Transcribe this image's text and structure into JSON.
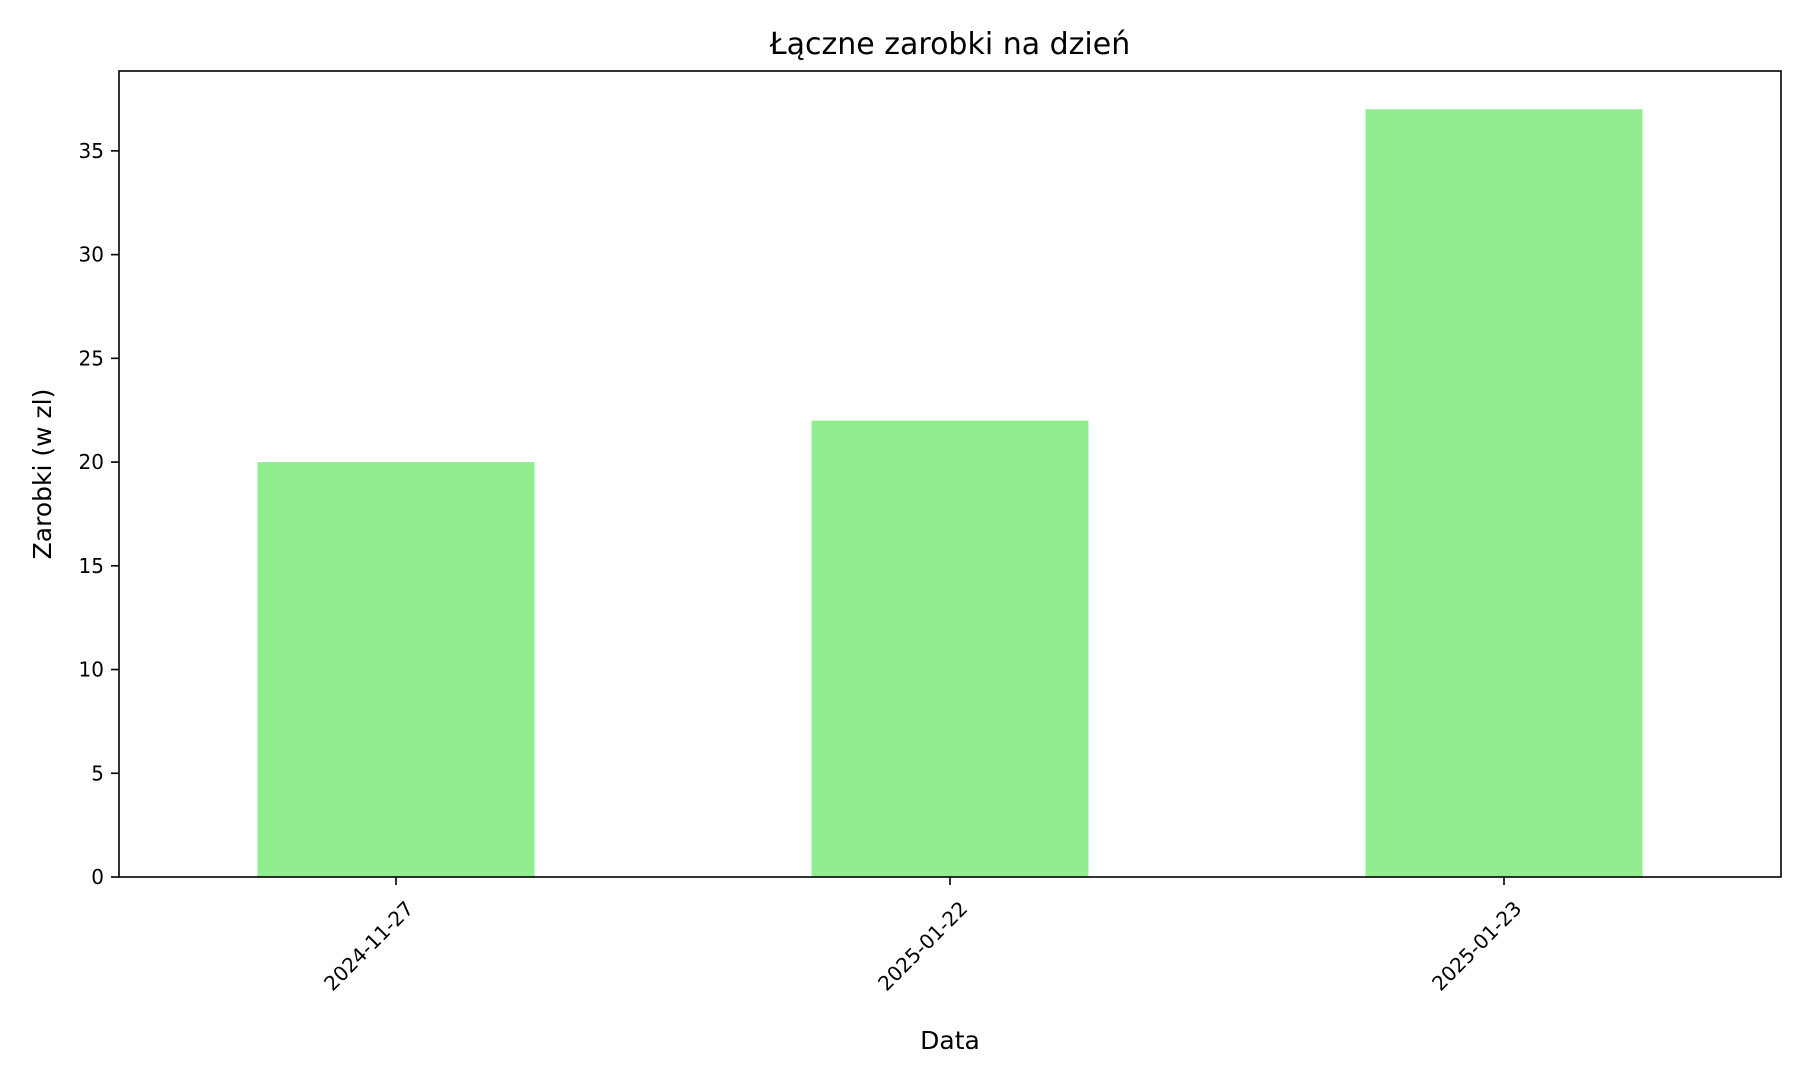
{
  "chart_data": {
    "type": "bar",
    "title": "Łączne zarobki na dzień",
    "xlabel": "Data",
    "ylabel": "Zarobki (w zl)",
    "categories": [
      "2024-11-27",
      "2025-01-22",
      "2025-01-23"
    ],
    "values": [
      20,
      22,
      37
    ],
    "ylim": [
      0,
      38.85
    ],
    "yticks": [
      "0",
      "5",
      "10",
      "15",
      "20",
      "25",
      "30",
      "35"
    ],
    "grid": false,
    "legend": "none",
    "bar_color": "#90ee90",
    "xtick_rotation": 45
  }
}
